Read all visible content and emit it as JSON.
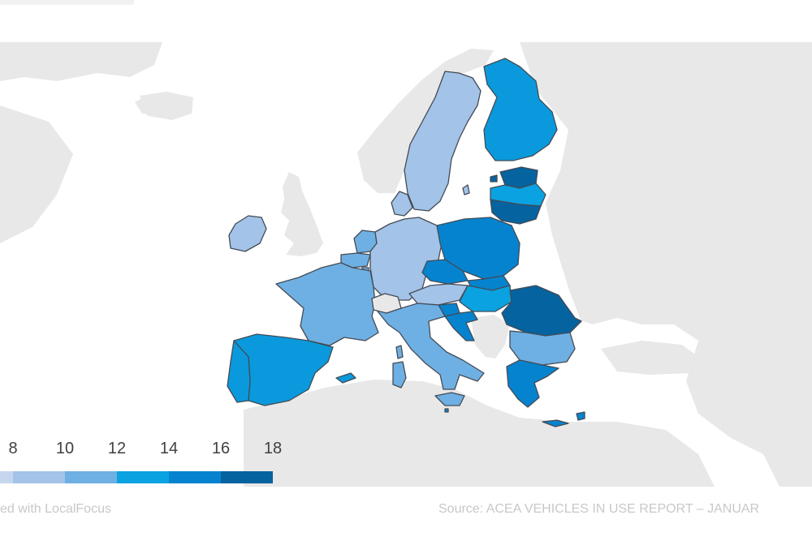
{
  "map": {
    "scale_colors": [
      "#c6d6ee",
      "#a3c3e8",
      "#6eb0e3",
      "#0aa2e0",
      "#0683cf",
      "#05639f"
    ],
    "region_colors": {
      "sweden": "#a3c3e8",
      "finland": "#0a99dc",
      "estonia": "#05639f",
      "latvia": "#0aa2e0",
      "lithuania": "#05639f",
      "denmark": "#a3c3e8",
      "ireland": "#a3c3e8",
      "netherlands": "#6eb0e3",
      "belgium": "#6eb0e3",
      "luxembourg": "#6eb0e3",
      "germany": "#a3c3e8",
      "poland": "#0683cf",
      "czechia": "#0683cf",
      "slovakia": "#0683cf",
      "austria": "#a3c3e8",
      "hungary": "#0aa2e0",
      "slovenia": "#0683cf",
      "croatia": "#0683cf",
      "france": "#6eb0e3",
      "spain": "#0a99dc",
      "portugal": "#0a99dc",
      "italy": "#6eb0e3",
      "sardinia": "#6eb0e3",
      "corsica": "#6eb0e3",
      "romania": "#05639f",
      "bulgaria": "#6eb0e3",
      "greece": "#0683cf",
      "malta": "#0683cf",
      "cyprus": "#0683cf",
      "switzerland": "#e8e8e8"
    }
  },
  "legend": {
    "ticks": [
      "8",
      "10",
      "12",
      "14",
      "16",
      "18"
    ]
  },
  "footer": {
    "credit": "ed with LocalFocus",
    "source": "Source:  ACEA VEHICLES IN USE REPORT – JANUAR"
  }
}
